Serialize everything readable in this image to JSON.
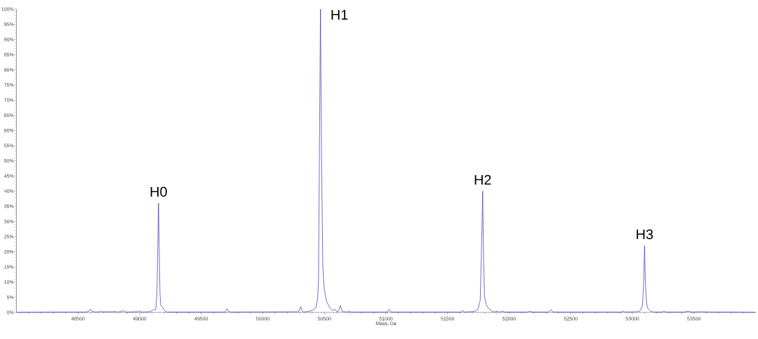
{
  "chart_data": {
    "type": "line",
    "xlabel": "Mass, Da",
    "xlim": [
      48000,
      54000
    ],
    "xticks": [
      {
        "value": 48100,
        "label": null
      },
      {
        "value": 48200,
        "label": null
      },
      {
        "value": 48300,
        "label": null
      },
      {
        "value": 48400,
        "label": null
      },
      48500,
      {
        "value": 48600,
        "label": null
      },
      {
        "value": 48700,
        "label": null
      },
      {
        "value": 48800,
        "label": null
      },
      {
        "value": 48900,
        "label": null
      },
      49000,
      {
        "value": 49100,
        "label": null
      },
      {
        "value": 49200,
        "label": null
      },
      {
        "value": 49300,
        "label": null
      },
      {
        "value": 49400,
        "label": null
      },
      49500,
      {
        "value": 49600,
        "label": null
      },
      {
        "value": 49700,
        "label": null
      },
      {
        "value": 49800,
        "label": null
      },
      {
        "value": 49900,
        "label": null
      },
      50000,
      {
        "value": 50100,
        "label": null
      },
      {
        "value": 50200,
        "label": null
      },
      {
        "value": 50300,
        "label": null
      },
      {
        "value": 50400,
        "label": null
      },
      50500,
      {
        "value": 50600,
        "label": null
      },
      {
        "value": 50700,
        "label": null
      },
      {
        "value": 50800,
        "label": null
      },
      {
        "value": 50900,
        "label": null
      },
      51000,
      {
        "value": 51100,
        "label": null
      },
      {
        "value": 51200,
        "label": null
      },
      {
        "value": 51300,
        "label": null
      },
      {
        "value": 51400,
        "label": null
      },
      51500,
      {
        "value": 51600,
        "label": null
      },
      {
        "value": 51700,
        "label": null
      },
      {
        "value": 51800,
        "label": null
      },
      {
        "value": 51900,
        "label": null
      },
      52000,
      {
        "value": 52100,
        "label": null
      },
      {
        "value": 52200,
        "label": null
      },
      {
        "value": 52300,
        "label": null
      },
      {
        "value": 52400,
        "label": null
      },
      52500,
      {
        "value": 52600,
        "label": null
      },
      {
        "value": 52700,
        "label": null
      },
      {
        "value": 52800,
        "label": null
      },
      {
        "value": 52900,
        "label": null
      },
      53000,
      {
        "value": 53100,
        "label": null
      },
      {
        "value": 53200,
        "label": null
      },
      {
        "value": 53300,
        "label": null
      },
      {
        "value": 53400,
        "label": null
      },
      53500,
      {
        "value": 53600,
        "label": null
      },
      {
        "value": 53700,
        "label": null
      },
      {
        "value": 53800,
        "label": null
      },
      {
        "value": 53900,
        "label": null
      }
    ],
    "ylim": [
      0,
      100
    ],
    "yticks": [
      {
        "value": 0,
        "label": "0%"
      },
      {
        "value": 1,
        "label": null
      },
      {
        "value": 2,
        "label": null
      },
      {
        "value": 3,
        "label": null
      },
      {
        "value": 4,
        "label": null
      },
      {
        "value": 5,
        "label": "5%"
      },
      {
        "value": 6,
        "label": null
      },
      {
        "value": 7,
        "label": null
      },
      {
        "value": 8,
        "label": null
      },
      {
        "value": 9,
        "label": null
      },
      {
        "value": 10,
        "label": "10%"
      },
      {
        "value": 11,
        "label": null
      },
      {
        "value": 12,
        "label": null
      },
      {
        "value": 13,
        "label": null
      },
      {
        "value": 14,
        "label": null
      },
      {
        "value": 15,
        "label": "15%"
      },
      {
        "value": 16,
        "label": null
      },
      {
        "value": 17,
        "label": null
      },
      {
        "value": 18,
        "label": null
      },
      {
        "value": 19,
        "label": null
      },
      {
        "value": 20,
        "label": "20%"
      },
      {
        "value": 21,
        "label": null
      },
      {
        "value": 22,
        "label": null
      },
      {
        "value": 23,
        "label": null
      },
      {
        "value": 24,
        "label": null
      },
      {
        "value": 25,
        "label": "25%"
      },
      {
        "value": 26,
        "label": null
      },
      {
        "value": 27,
        "label": null
      },
      {
        "value": 28,
        "label": null
      },
      {
        "value": 29,
        "label": null
      },
      {
        "value": 30,
        "label": "30%"
      },
      {
        "value": 31,
        "label": null
      },
      {
        "value": 32,
        "label": null
      },
      {
        "value": 33,
        "label": null
      },
      {
        "value": 34,
        "label": null
      },
      {
        "value": 35,
        "label": "35%"
      },
      {
        "value": 36,
        "label": null
      },
      {
        "value": 37,
        "label": null
      },
      {
        "value": 38,
        "label": null
      },
      {
        "value": 39,
        "label": null
      },
      {
        "value": 40,
        "label": "40%"
      },
      {
        "value": 41,
        "label": null
      },
      {
        "value": 42,
        "label": null
      },
      {
        "value": 43,
        "label": null
      },
      {
        "value": 44,
        "label": null
      },
      {
        "value": 45,
        "label": "45%"
      },
      {
        "value": 46,
        "label": null
      },
      {
        "value": 47,
        "label": null
      },
      {
        "value": 48,
        "label": null
      },
      {
        "value": 49,
        "label": null
      },
      {
        "value": 50,
        "label": "50%"
      },
      {
        "value": 51,
        "label": null
      },
      {
        "value": 52,
        "label": null
      },
      {
        "value": 53,
        "label": null
      },
      {
        "value": 54,
        "label": null
      },
      {
        "value": 55,
        "label": "55%"
      },
      {
        "value": 56,
        "label": null
      },
      {
        "value": 57,
        "label": null
      },
      {
        "value": 58,
        "label": null
      },
      {
        "value": 59,
        "label": null
      },
      {
        "value": 60,
        "label": "60%"
      },
      {
        "value": 61,
        "label": null
      },
      {
        "value": 62,
        "label": null
      },
      {
        "value": 63,
        "label": null
      },
      {
        "value": 64,
        "label": null
      },
      {
        "value": 65,
        "label": "65%"
      },
      {
        "value": 66,
        "label": null
      },
      {
        "value": 67,
        "label": null
      },
      {
        "value": 68,
        "label": null
      },
      {
        "value": 69,
        "label": null
      },
      {
        "value": 70,
        "label": "70%"
      },
      {
        "value": 71,
        "label": null
      },
      {
        "value": 72,
        "label": null
      },
      {
        "value": 73,
        "label": null
      },
      {
        "value": 74,
        "label": null
      },
      {
        "value": 75,
        "label": "75%"
      },
      {
        "value": 76,
        "label": null
      },
      {
        "value": 77,
        "label": null
      },
      {
        "value": 78,
        "label": null
      },
      {
        "value": 79,
        "label": null
      },
      {
        "value": 80,
        "label": "80%"
      },
      {
        "value": 81,
        "label": null
      },
      {
        "value": 82,
        "label": null
      },
      {
        "value": 83,
        "label": null
      },
      {
        "value": 84,
        "label": null
      },
      {
        "value": 85,
        "label": "85%"
      },
      {
        "value": 86,
        "label": null
      },
      {
        "value": 87,
        "label": null
      },
      {
        "value": 88,
        "label": null
      },
      {
        "value": 89,
        "label": null
      },
      {
        "value": 90,
        "label": "90%"
      },
      {
        "value": 91,
        "label": null
      },
      {
        "value": 92,
        "label": null
      },
      {
        "value": 93,
        "label": null
      },
      {
        "value": 94,
        "label": null
      },
      {
        "value": 95,
        "label": "95%"
      },
      {
        "value": 96,
        "label": null
      },
      {
        "value": 97,
        "label": null
      },
      {
        "value": 98,
        "label": null
      },
      {
        "value": 99,
        "label": null
      },
      {
        "value": 100,
        "label": "100%"
      }
    ],
    "marker": "none",
    "line_style": "solid",
    "series": [
      {
        "color": "#3030c0",
        "x": [
          48000,
          48400,
          48570,
          48590,
          48603,
          48615,
          48640,
          48680,
          48690,
          48700,
          48790,
          48802,
          48815,
          48845,
          48867,
          48890,
          48985,
          48999,
          49012,
          49080,
          49110,
          49131,
          49140,
          49147,
          49153,
          49159,
          49165,
          49172,
          49180,
          49195,
          49210,
          49225,
          49690,
          49700,
          49710,
          49720,
          49735,
          50290,
          50300,
          50308,
          50318,
          50330,
          50370,
          50405,
          50430,
          50445,
          50452,
          50459,
          50468,
          50477,
          50487,
          50497,
          50516,
          50544,
          50565,
          50586,
          50600,
          50615,
          50630,
          50645,
          50685,
          50696,
          50710,
          51010,
          51026,
          51040,
          51610,
          51621,
          51635,
          51720,
          51745,
          51765,
          51775,
          51785,
          51792,
          51800,
          51815,
          51830,
          51864,
          51880,
          51902,
          51920,
          51950,
          51965,
          52150,
          52168,
          52185,
          52320,
          52339,
          52355,
          52915,
          52928,
          52940,
          53040,
          53065,
          53082,
          53092,
          53099,
          53106,
          53115,
          53127,
          53145,
          53170,
          53245,
          53256,
          53270,
          53420,
          53450,
          53480,
          53553,
          53650,
          53800,
          54000
        ],
        "values": [
          0,
          0.1,
          0.1,
          0.5,
          1.1,
          0.3,
          0.1,
          0.2,
          0.4,
          0.2,
          0.2,
          0.4,
          0.1,
          0.2,
          0.6,
          0.1,
          0.2,
          0.6,
          0.1,
          0.2,
          0.8,
          1.0,
          6,
          22,
          36,
          20,
          6,
          2.4,
          2.0,
          1.0,
          0.3,
          0.1,
          0.1,
          0.6,
          1.2,
          0.3,
          0.1,
          0.2,
          1.2,
          1.9,
          0.6,
          0.1,
          0.3,
          0.7,
          1.5,
          4.5,
          10.6,
          50,
          100,
          50,
          15,
          8.3,
          3.7,
          1.5,
          0.6,
          1.0,
          0.3,
          0.5,
          2.2,
          0.3,
          0.1,
          0.5,
          0.1,
          0.1,
          1.0,
          0.1,
          0.1,
          0.7,
          0.1,
          0.3,
          1.0,
          4,
          20,
          40,
          18,
          5,
          2.5,
          1.4,
          0.3,
          0.1,
          0.4,
          0.1,
          0.4,
          0.1,
          0.1,
          0.4,
          0.1,
          0.1,
          0.9,
          0.1,
          0.1,
          0.5,
          0.1,
          0.2,
          0.6,
          2.2,
          10,
          22,
          10,
          3,
          1.2,
          0.5,
          0.1,
          0.1,
          0.4,
          0.1,
          0.1,
          0.4,
          0.1,
          0.2,
          0.1,
          0.1,
          0
        ]
      }
    ],
    "annotations": [
      {
        "text": "H0",
        "x": 49153,
        "y": 36
      },
      {
        "text": "H1",
        "x": 50468,
        "y": 100
      },
      {
        "text": "H2",
        "x": 51785,
        "y": 40
      },
      {
        "text": "H3",
        "x": 53099,
        "y": 22
      }
    ]
  }
}
